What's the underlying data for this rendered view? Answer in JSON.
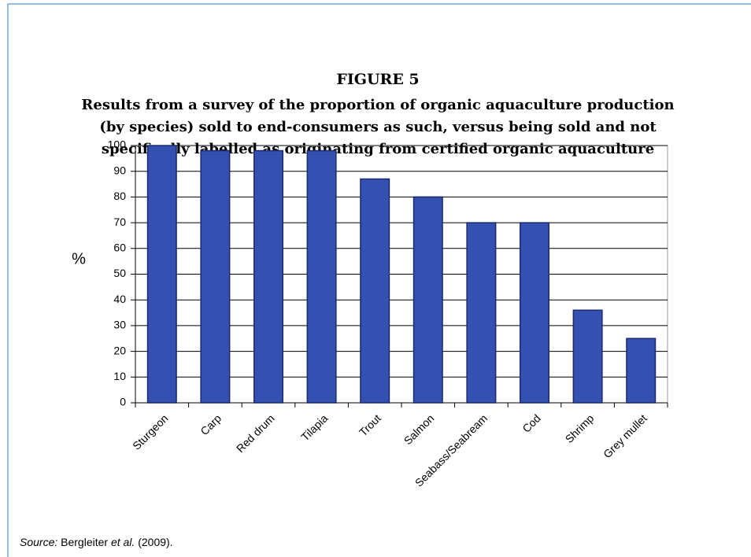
{
  "chart_data": {
    "type": "bar",
    "title": "FIGURE 5",
    "subtitle": [
      "Results from a survey of the proportion of organic aquaculture production",
      "(by species) sold to end-consumers as such, versus being sold and not",
      "specifically labelled as originating from certified organic aquaculture"
    ],
    "y_label": "%",
    "categories": [
      "Sturgeon",
      "Carp",
      "Red drum",
      "Tilapia",
      "Trout",
      "Salmon",
      "Seabass/Seabream",
      "Cod",
      "Shrimp",
      "Grey mullet"
    ],
    "values": [
      100,
      98,
      98,
      98,
      87,
      80,
      70,
      70,
      36,
      25
    ],
    "color": "#3451b2",
    "ylim": [
      0,
      100
    ],
    "yticks": [
      0,
      10,
      20,
      30,
      40,
      50,
      60,
      70,
      80,
      90,
      100
    ],
    "grid": true,
    "source": {
      "label": "Source:",
      "author": "Bergleiter",
      "etal": "et al.",
      "year": "(2009)."
    }
  }
}
